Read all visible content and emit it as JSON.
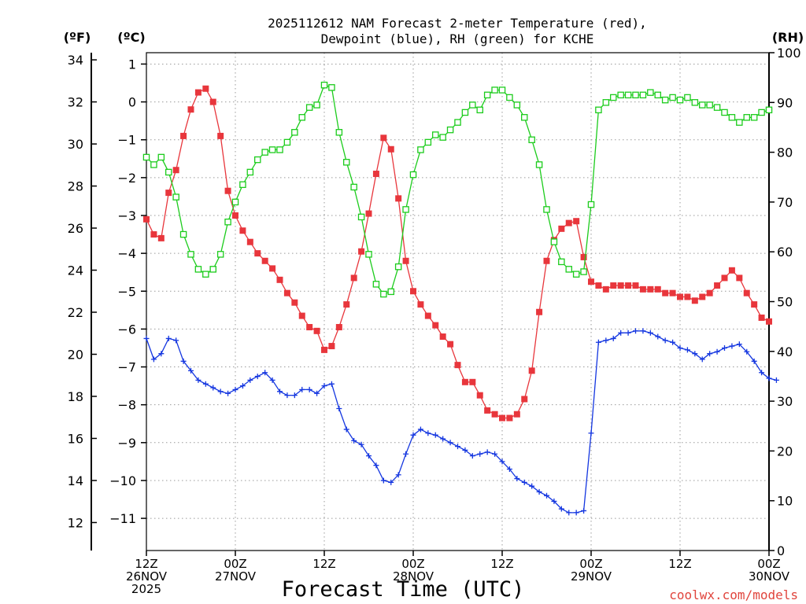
{
  "chart_data": {
    "type": "line",
    "title_line1": "2025112612 NAM Forecast 2-meter Temperature (red),",
    "title_line2": "Dewpoint (blue), RH (green) for KCHE",
    "xlabel": "Forecast Time (UTC)",
    "credit": "coolwx.com/models",
    "units": {
      "fahrenheit": "(ºF)",
      "celsius": "(ºC)",
      "rh": "(RH)"
    },
    "x_range_hours": [
      0,
      84
    ],
    "x_ticks": [
      {
        "hour": 0,
        "line1": "12Z",
        "line2": "26NOV",
        "line3": "2025"
      },
      {
        "hour": 12,
        "line1": "00Z",
        "line2": "27NOV",
        "line3": ""
      },
      {
        "hour": 24,
        "line1": "12Z",
        "line2": "",
        "line3": ""
      },
      {
        "hour": 36,
        "line1": "00Z",
        "line2": "28NOV",
        "line3": ""
      },
      {
        "hour": 48,
        "line1": "12Z",
        "line2": "",
        "line3": ""
      },
      {
        "hour": 60,
        "line1": "00Z",
        "line2": "29NOV",
        "line3": ""
      },
      {
        "hour": 72,
        "line1": "12Z",
        "line2": "",
        "line3": ""
      },
      {
        "hour": 84,
        "line1": "00Z",
        "line2": "30NOV",
        "line3": ""
      }
    ],
    "celsius_range": [
      -11.85,
      1.3
    ],
    "celsius_ticks": [
      "1",
      "0",
      "−1",
      "−2",
      "−3",
      "−4",
      "−5",
      "−6",
      "−7",
      "−8",
      "−9",
      "−10",
      "−11"
    ],
    "fahrenheit_ticks": [
      "34",
      "32",
      "30",
      "28",
      "26",
      "24",
      "22",
      "20",
      "18",
      "16",
      "14",
      "12"
    ],
    "rh_range": [
      0,
      100
    ],
    "rh_ticks": [
      "100",
      "90",
      "80",
      "70",
      "60",
      "50",
      "40",
      "30",
      "20",
      "10",
      "0"
    ],
    "series": [
      {
        "name": "Temperature",
        "color": "#e8363c",
        "marker": "filled-square",
        "units": "C",
        "values": [
          -3.1,
          -3.5,
          -3.6,
          -2.4,
          -1.8,
          -0.9,
          -0.2,
          0.25,
          0.35,
          0.0,
          -0.9,
          -2.35,
          -3.0,
          -3.4,
          -3.7,
          -4.0,
          -4.2,
          -4.4,
          -4.7,
          -5.05,
          -5.3,
          -5.65,
          -5.95,
          -6.05,
          -6.55,
          -6.45,
          -5.95,
          -5.35,
          -4.65,
          -3.95,
          -2.95,
          -1.9,
          -0.95,
          -1.25,
          -2.55,
          -4.2,
          -5.0,
          -5.35,
          -5.65,
          -5.9,
          -6.2,
          -6.4,
          -6.95,
          -7.4,
          -7.4,
          -7.75,
          -8.15,
          -8.25,
          -8.35,
          -8.35,
          -8.25,
          -7.85,
          -7.1,
          -5.55,
          -4.2,
          -3.65,
          -3.35,
          -3.2,
          -3.15,
          -4.1,
          -4.75,
          -4.85,
          -4.95,
          -4.85,
          -4.85,
          -4.85,
          -4.85,
          -4.95,
          -4.95,
          -4.95,
          -5.05,
          -5.05,
          -5.15,
          -5.15,
          -5.25,
          -5.15,
          -5.05,
          -4.85,
          -4.65,
          -4.45,
          -4.65,
          -5.05,
          -5.35,
          -5.7,
          -5.8
        ]
      },
      {
        "name": "Dewpoint",
        "color": "#1436e0",
        "marker": "plus",
        "units": "C",
        "values": [
          -6.25,
          -6.8,
          -6.65,
          -6.25,
          -6.3,
          -6.85,
          -7.1,
          -7.35,
          -7.45,
          -7.55,
          -7.65,
          -7.7,
          -7.6,
          -7.5,
          -7.35,
          -7.25,
          -7.15,
          -7.35,
          -7.65,
          -7.75,
          -7.75,
          -7.6,
          -7.6,
          -7.7,
          -7.5,
          -7.45,
          -8.1,
          -8.65,
          -8.95,
          -9.05,
          -9.35,
          -9.6,
          -10.0,
          -10.05,
          -9.85,
          -9.3,
          -8.8,
          -8.65,
          -8.75,
          -8.8,
          -8.9,
          -9.0,
          -9.1,
          -9.2,
          -9.35,
          -9.3,
          -9.25,
          -9.3,
          -9.5,
          -9.7,
          -9.95,
          -10.05,
          -10.15,
          -10.3,
          -10.4,
          -10.55,
          -10.75,
          -10.85,
          -10.85,
          -10.8,
          -8.75,
          -6.35,
          -6.3,
          -6.25,
          -6.1,
          -6.1,
          -6.05,
          -6.05,
          -6.1,
          -6.2,
          -6.3,
          -6.35,
          -6.5,
          -6.55,
          -6.65,
          -6.8,
          -6.65,
          -6.6,
          -6.5,
          -6.45,
          -6.4,
          -6.6,
          -6.85,
          -7.15,
          -7.3,
          -7.35
        ]
      },
      {
        "name": "RH",
        "color": "#1ccc1c",
        "marker": "open-square",
        "units": "percent",
        "values": [
          79,
          77.5,
          79,
          76,
          71,
          63.5,
          59.5,
          56.5,
          55.5,
          56.5,
          59.5,
          66,
          70,
          73.5,
          76,
          78.5,
          80,
          80.5,
          80.5,
          82,
          84,
          87,
          89,
          89.5,
          93.5,
          93,
          84,
          78,
          73,
          67,
          59.5,
          53.5,
          51.5,
          52,
          57,
          68.5,
          75.5,
          80.5,
          82,
          83.5,
          83,
          84.5,
          86,
          88,
          89.5,
          88.5,
          91.5,
          92.5,
          92.5,
          91,
          89.5,
          87,
          82.5,
          77.5,
          68.5,
          62,
          58,
          56.5,
          55.5,
          56,
          69.5,
          88.5,
          90,
          91,
          91.5,
          91.5,
          91.5,
          91.5,
          92,
          91.5,
          90.5,
          91,
          90.5,
          91,
          90,
          89.5,
          89.5,
          89,
          88,
          87,
          86,
          87,
          87,
          88,
          88.5
        ]
      }
    ]
  }
}
